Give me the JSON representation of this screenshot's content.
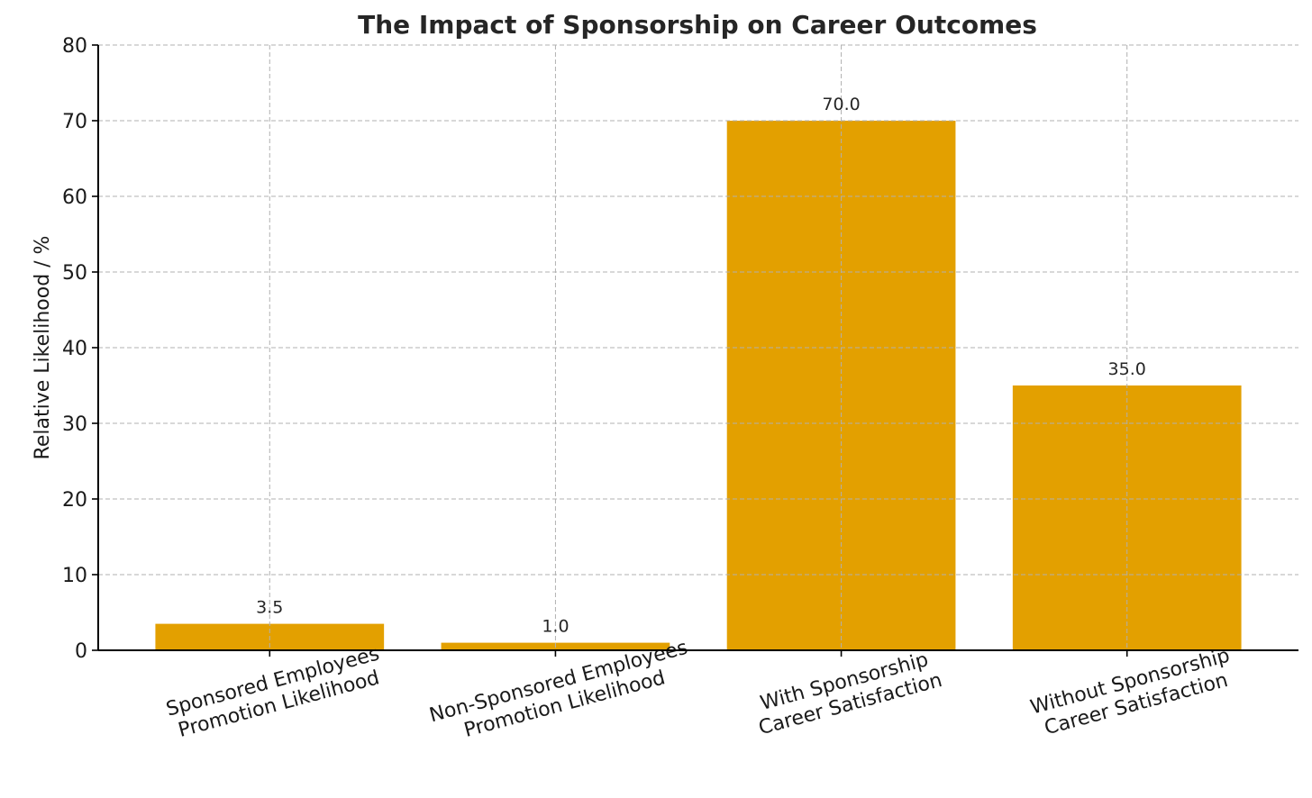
{
  "chart_data": {
    "type": "bar",
    "title": "The Impact of Sponsorship on Career Outcomes",
    "xlabel": "",
    "ylabel": "Relative Likelihood / %",
    "categories": [
      [
        "Sponsored Employees",
        "Promotion Likelihood"
      ],
      [
        "Non-Sponsored Employees",
        "Promotion Likelihood"
      ],
      [
        "With Sponsorship",
        "Career Satisfaction"
      ],
      [
        "Without Sponsorship",
        "Career Satisfaction"
      ]
    ],
    "values": [
      3.5,
      1.0,
      70.0,
      35.0
    ],
    "value_labels": [
      "3.5",
      "1.0",
      "70.0",
      "35.0"
    ],
    "ylim": [
      0,
      80
    ],
    "yticks": [
      0,
      10,
      20,
      30,
      40,
      50,
      60,
      70,
      80
    ],
    "ytick_labels": [
      "0",
      "10",
      "20",
      "30",
      "40",
      "50",
      "60",
      "70",
      "80"
    ],
    "grid": true,
    "bar_color": "#E3A000"
  }
}
